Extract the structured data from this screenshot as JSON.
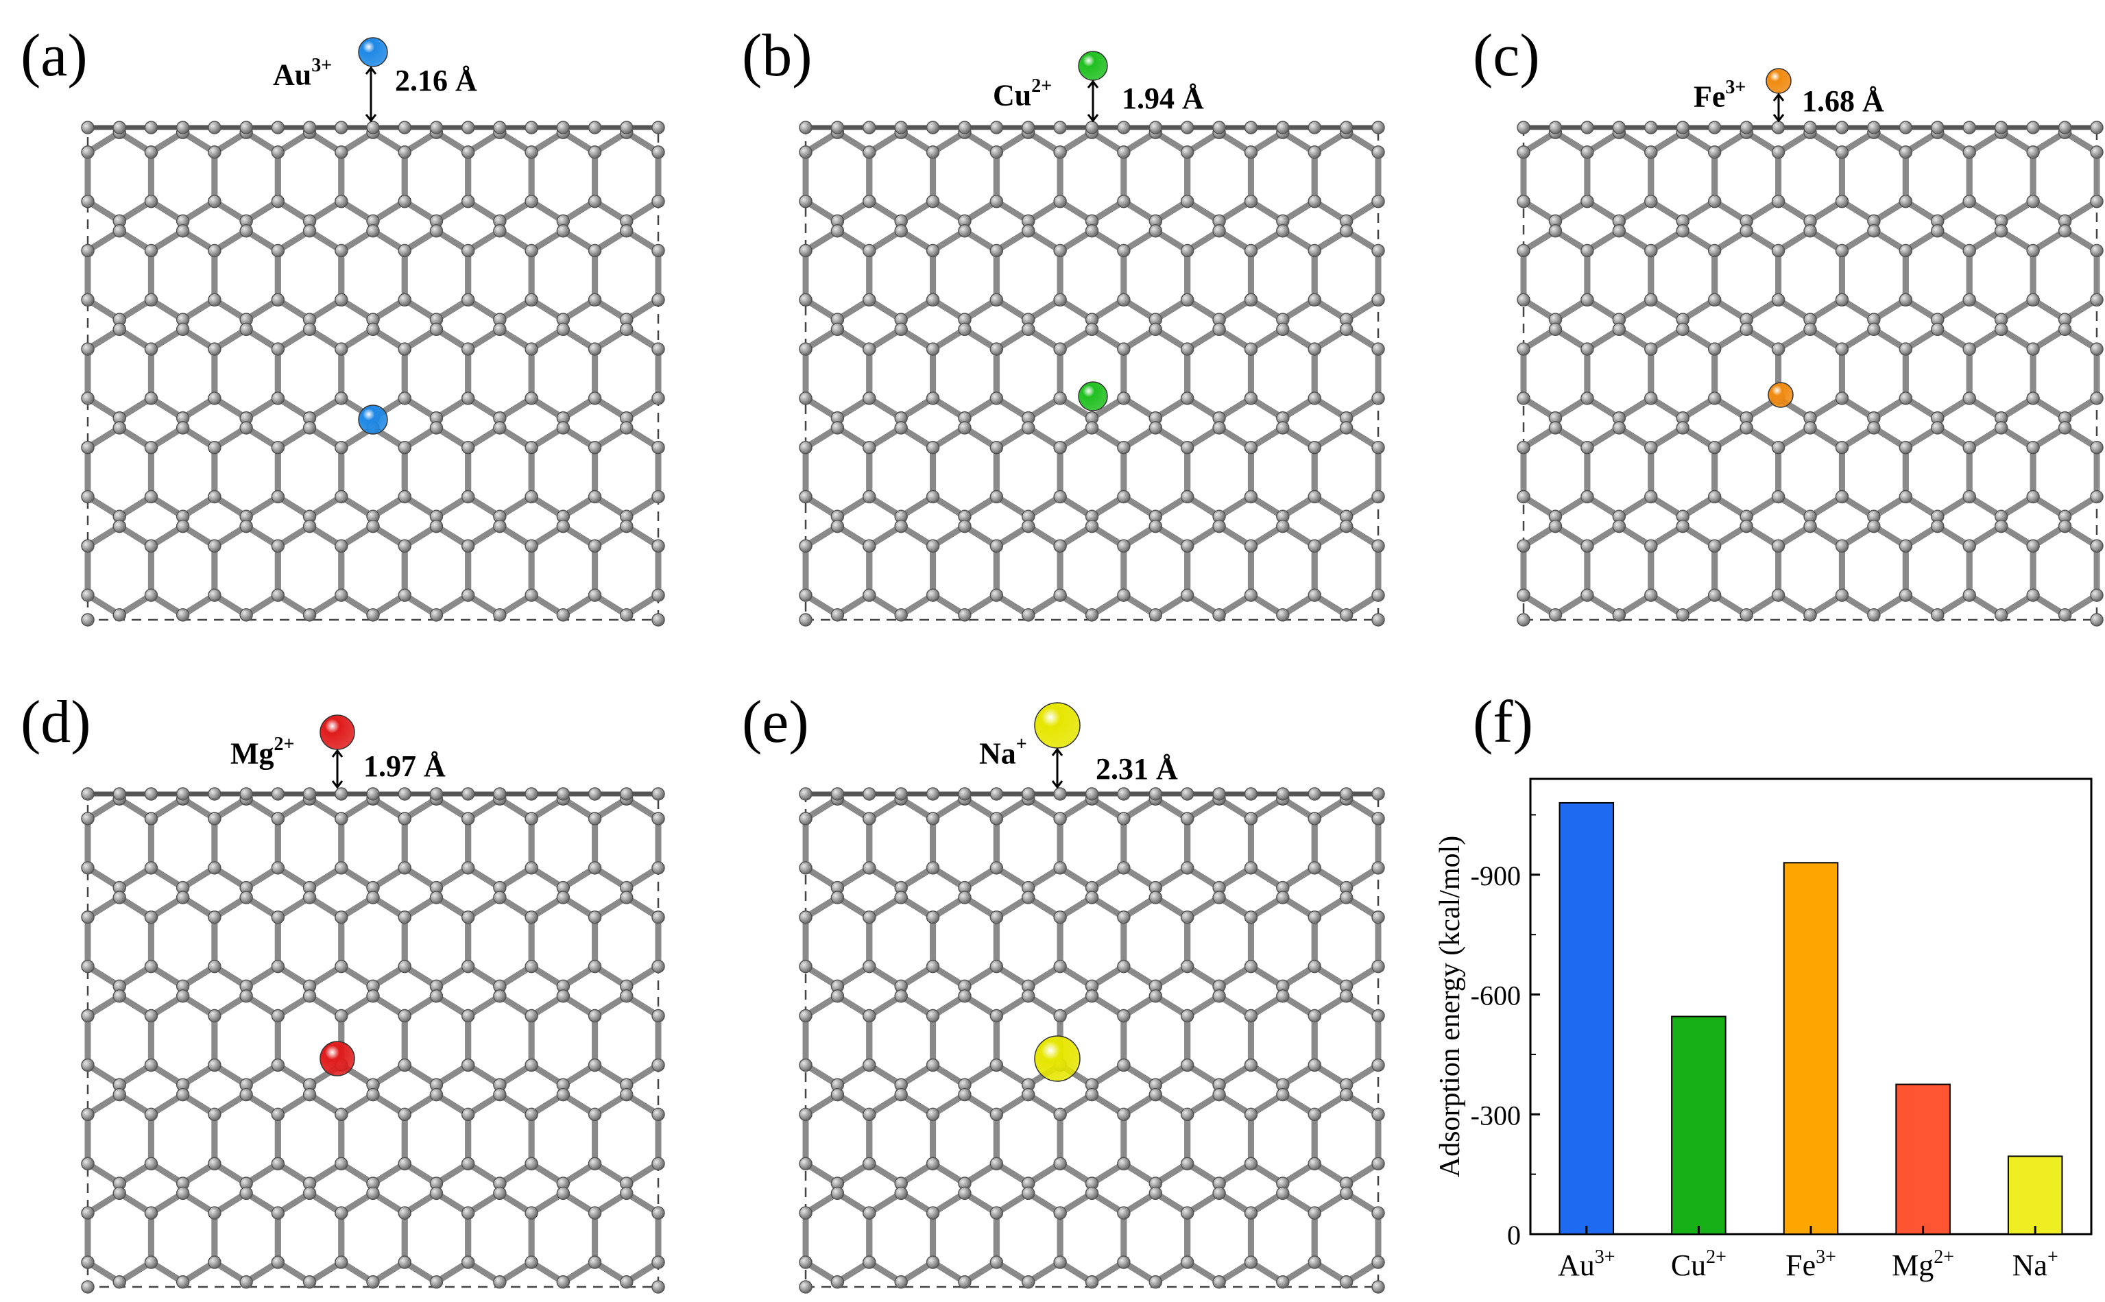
{
  "panels": [
    {
      "letter": "(a)",
      "ion": "Au",
      "charge": "3+",
      "distance": "2.16 Å",
      "color": "#1e88e5"
    },
    {
      "letter": "(b)",
      "ion": "Cu",
      "charge": "2+",
      "distance": "1.94 Å",
      "color": "#20c020"
    },
    {
      "letter": "(c)",
      "ion": "Fe",
      "charge": "3+",
      "distance": "1.68 Å",
      "color": "#f08a10"
    },
    {
      "letter": "(d)",
      "ion": "Mg",
      "charge": "2+",
      "distance": "1.97 Å",
      "color": "#e01b1b"
    },
    {
      "letter": "(e)",
      "ion": "Na",
      "charge": "+",
      "distance": "2.31 Å",
      "color": "#e6e600"
    }
  ],
  "chart_panel_letter": "(f)",
  "chart_data": {
    "type": "bar",
    "title": "",
    "xlabel": "",
    "ylabel": "Adsorption energy (kcal/mol)",
    "categories": [
      {
        "base": "Au",
        "sup": "3+"
      },
      {
        "base": "Cu",
        "sup": "2+"
      },
      {
        "base": "Fe",
        "sup": "3+"
      },
      {
        "base": "Mg",
        "sup": "2+"
      },
      {
        "base": "Na",
        "sup": "+"
      }
    ],
    "values": [
      -1080,
      -545,
      -930,
      -375,
      -195
    ],
    "colors": [
      "#1e6af0",
      "#17b017",
      "#ffa500",
      "#ff5533",
      "#eeee22"
    ],
    "yticks": [
      0,
      -300,
      -600,
      -900
    ],
    "ytick_labels": [
      "0",
      "-300",
      "-600",
      "-900"
    ],
    "ylim": [
      0,
      -1140
    ],
    "axis_inverted": true
  }
}
